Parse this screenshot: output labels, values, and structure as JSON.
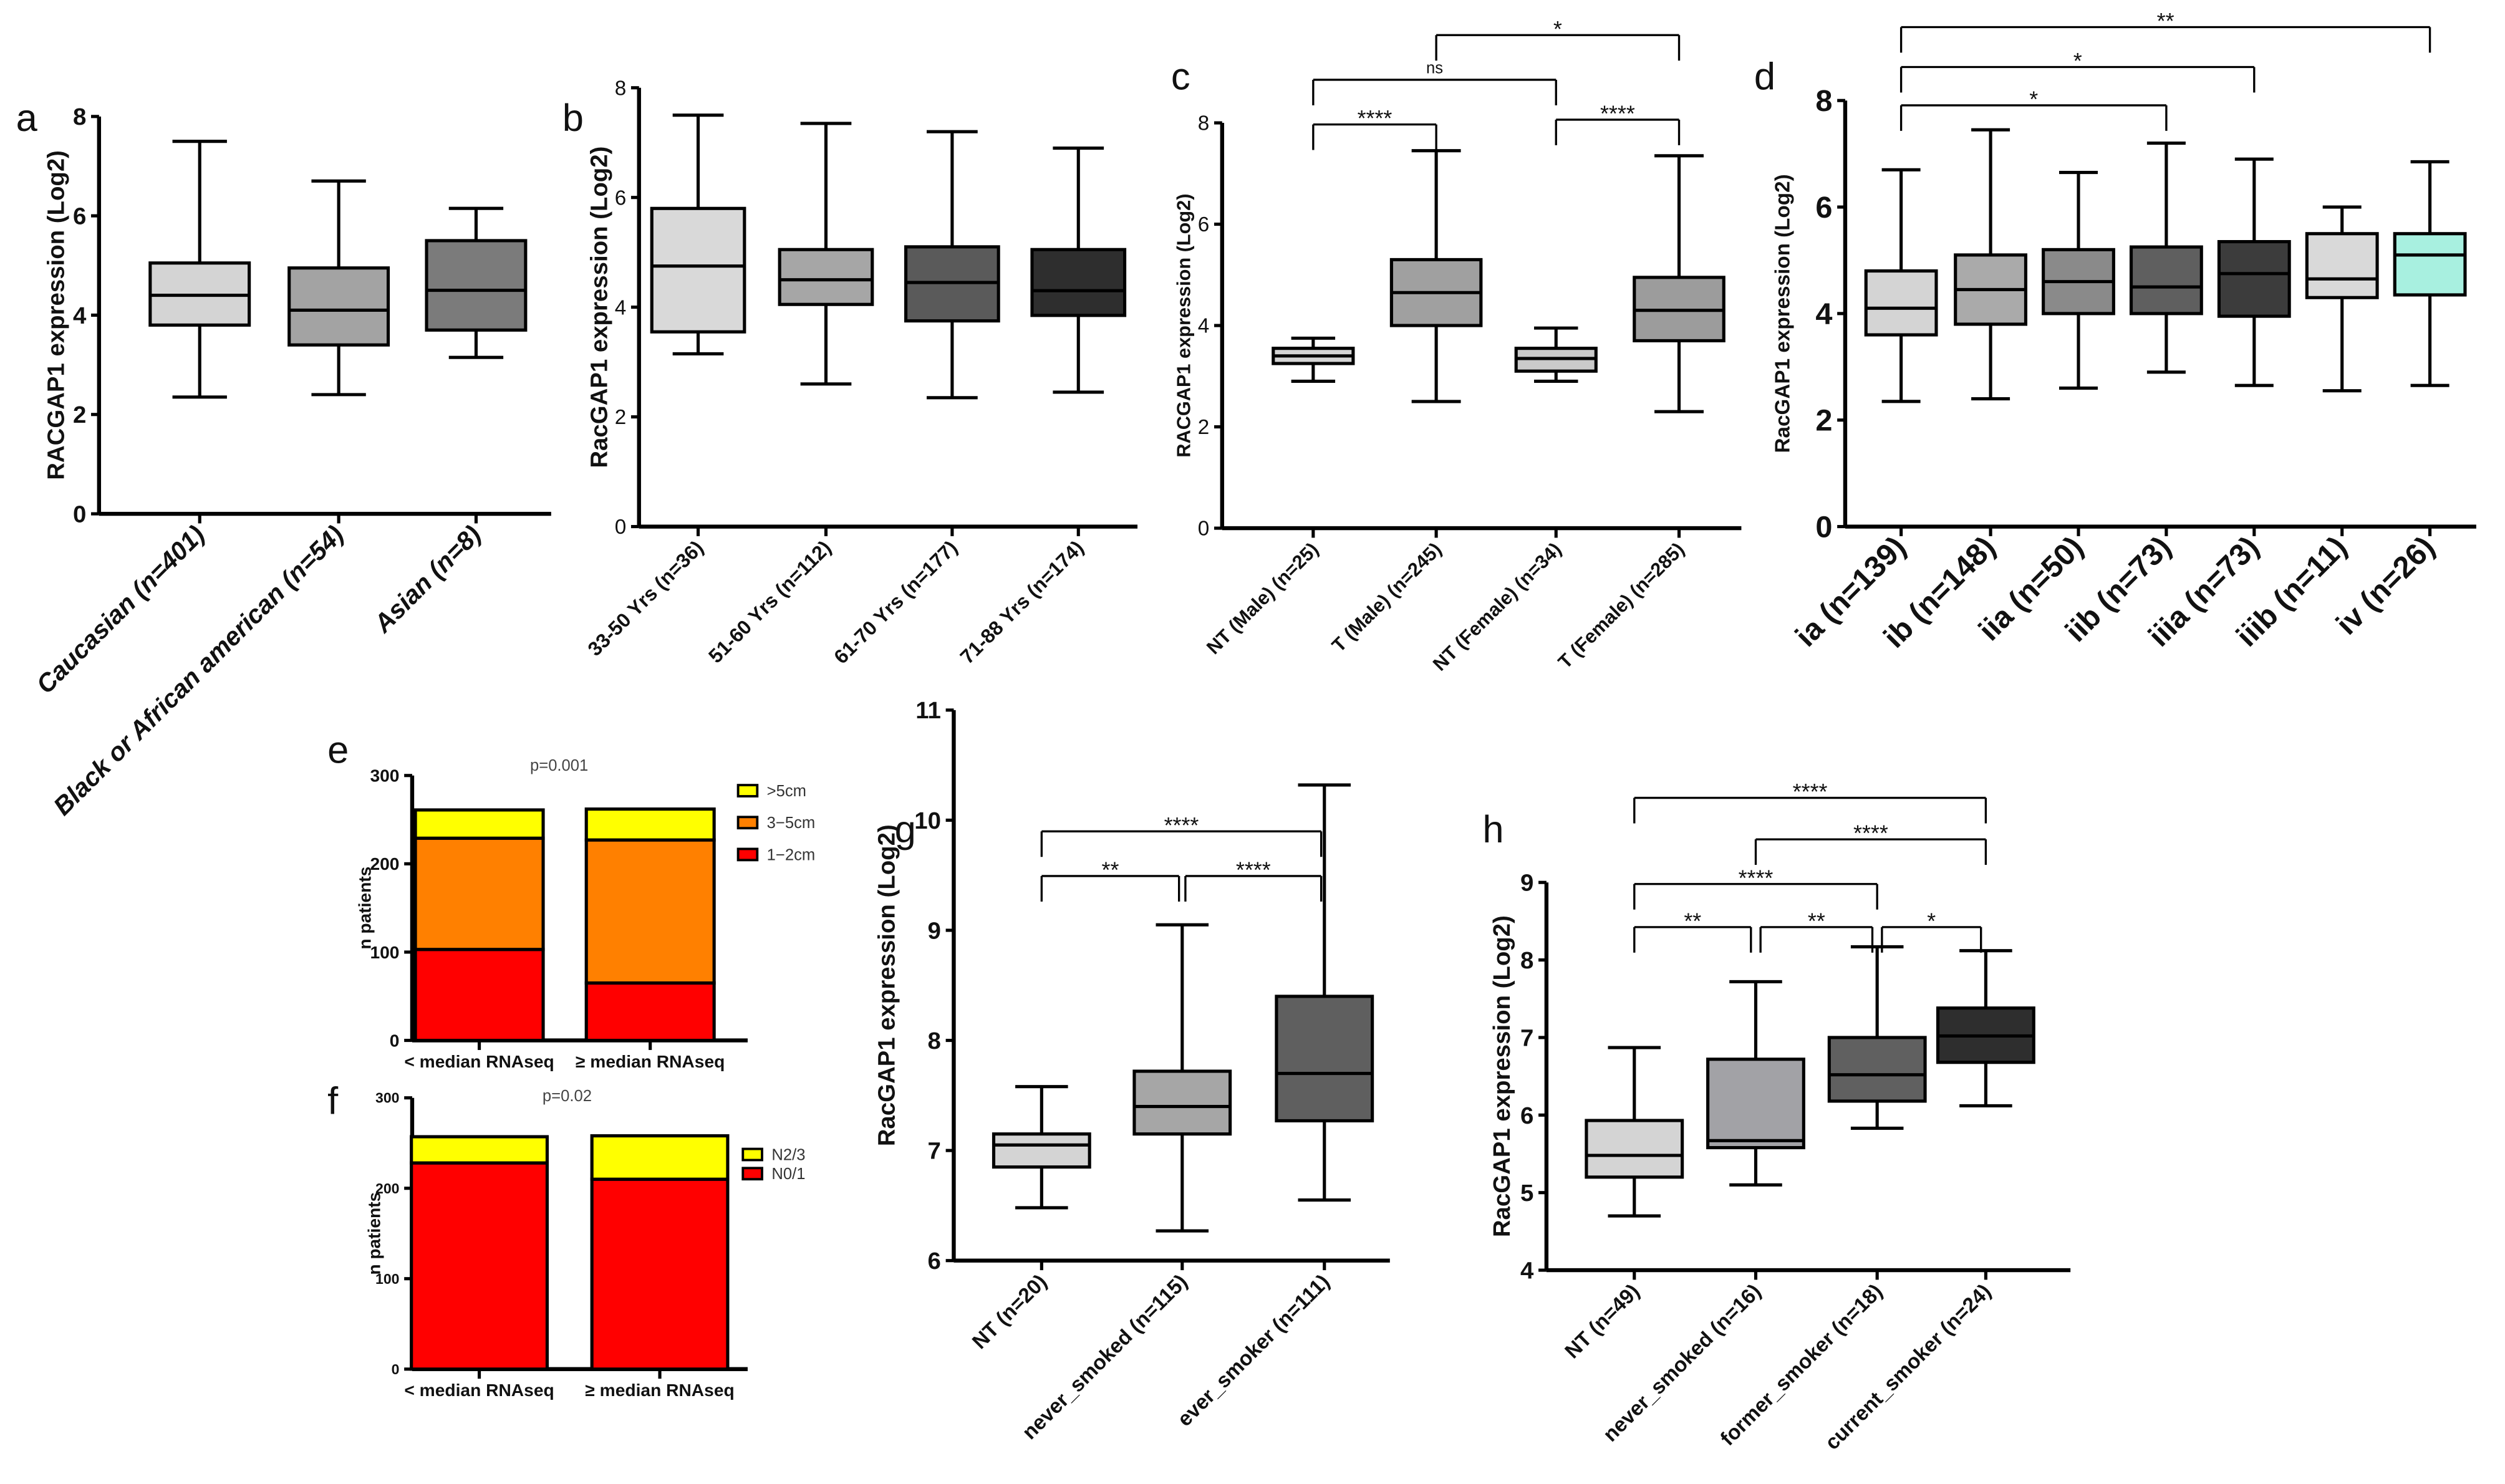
{
  "chart_data": [
    {
      "panel_label": "a",
      "type": "box",
      "ylabel": "RACGAP1 expression (Log2)",
      "ylim": [
        0,
        8
      ],
      "yticks": [
        0,
        2,
        4,
        6,
        8
      ],
      "categories": [
        "Caucasian (n=401)",
        "Black or African american (n=54)",
        "Asian (n=8)"
      ],
      "boxes": [
        {
          "min": 2.35,
          "q1": 3.8,
          "median": 4.4,
          "q3": 5.05,
          "max": 7.5
        },
        {
          "min": 2.4,
          "q1": 3.4,
          "median": 4.1,
          "q3": 4.95,
          "max": 6.7
        },
        {
          "min": 3.15,
          "q1": 3.7,
          "median": 4.5,
          "q3": 5.5,
          "max": 6.15
        }
      ],
      "colors": [
        "#d4d4d4",
        "#a3a3a3",
        "#7b7b7b"
      ],
      "significance": []
    },
    {
      "panel_label": "b",
      "type": "box",
      "ylabel": "RacGAP1 expression (Log2)",
      "ylim": [
        0,
        8
      ],
      "yticks": [
        0,
        2,
        4,
        6,
        8
      ],
      "categories": [
        "33-50 Yrs (n=36)",
        "51-60 Yrs (n=112)",
        "61-70 Yrs (n=177)",
        "71-88 Yrs (n=174)"
      ],
      "boxes": [
        {
          "min": 3.15,
          "q1": 3.55,
          "median": 4.75,
          "q3": 5.8,
          "max": 7.5
        },
        {
          "min": 2.6,
          "q1": 4.05,
          "median": 4.5,
          "q3": 5.05,
          "max": 7.35
        },
        {
          "min": 2.35,
          "q1": 3.75,
          "median": 4.45,
          "q3": 5.1,
          "max": 7.2
        },
        {
          "min": 2.45,
          "q1": 3.85,
          "median": 4.3,
          "q3": 5.05,
          "max": 6.9
        }
      ],
      "colors": [
        "#d9d9d9",
        "#a6a6a6",
        "#5a5a5a",
        "#2e2e2e"
      ],
      "significance": []
    },
    {
      "panel_label": "c",
      "type": "box",
      "ylabel": "RACGAP1 expression (Log2)",
      "ylim": [
        0,
        8
      ],
      "yticks": [
        0,
        2,
        4,
        6,
        8
      ],
      "categories": [
        "NT (Male) (n=25)",
        "T (Male) (n=245)",
        "NT (Female) (n=34)",
        "T (Female) (n=285)"
      ],
      "boxes": [
        {
          "min": 2.9,
          "q1": 3.25,
          "median": 3.4,
          "q3": 3.55,
          "max": 3.75
        },
        {
          "min": 2.5,
          "q1": 4.0,
          "median": 4.65,
          "q3": 5.3,
          "max": 7.45
        },
        {
          "min": 2.9,
          "q1": 3.1,
          "median": 3.35,
          "q3": 3.55,
          "max": 3.95
        },
        {
          "min": 2.3,
          "q1": 3.7,
          "median": 4.3,
          "q3": 4.95,
          "max": 7.35
        }
      ],
      "colors": [
        "#d4d4d4",
        "#a0a0a0",
        "#cacaca",
        "#9c9c9c"
      ],
      "significance": [
        {
          "from": 0,
          "to": 1,
          "label": "****"
        },
        {
          "from": 2,
          "to": 3,
          "label": "****"
        },
        {
          "from": 0,
          "to": 2,
          "label": "ns"
        },
        {
          "from": 1,
          "to": 3,
          "label": "*"
        }
      ]
    },
    {
      "panel_label": "d",
      "type": "box",
      "ylabel": "RacGAP1 expression (Log2)",
      "ylim": [
        0,
        8
      ],
      "yticks": [
        0,
        2,
        4,
        6,
        8
      ],
      "categories": [
        "ia (n=139)",
        "ib (n=148)",
        "iia (n=50)",
        "iib (n=73)",
        "iiia (n=73)",
        "iiib (n=11)",
        "iv (n=26)"
      ],
      "boxes": [
        {
          "min": 2.35,
          "q1": 3.6,
          "median": 4.1,
          "q3": 4.8,
          "max": 6.7
        },
        {
          "min": 2.4,
          "q1": 3.8,
          "median": 4.45,
          "q3": 5.1,
          "max": 7.45
        },
        {
          "min": 2.6,
          "q1": 4.0,
          "median": 4.6,
          "q3": 5.2,
          "max": 6.65
        },
        {
          "min": 2.9,
          "q1": 4.0,
          "median": 4.5,
          "q3": 5.25,
          "max": 7.2
        },
        {
          "min": 2.65,
          "q1": 3.95,
          "median": 4.75,
          "q3": 5.35,
          "max": 6.9
        },
        {
          "min": 2.55,
          "q1": 4.3,
          "median": 4.65,
          "q3": 5.5,
          "max": 6.0
        },
        {
          "min": 2.65,
          "q1": 4.35,
          "median": 5.1,
          "q3": 5.5,
          "max": 6.85
        }
      ],
      "colors": [
        "#d4d4d4",
        "#aaaaaa",
        "#8a8a8a",
        "#5f5f5f",
        "#3c3c3c",
        "#d9d9d9",
        "#a8f0e0"
      ],
      "significance": [
        {
          "from": 0,
          "to": 3,
          "label": "*"
        },
        {
          "from": 0,
          "to": 4,
          "label": "*"
        },
        {
          "from": 0,
          "to": 6,
          "label": "**"
        }
      ]
    },
    {
      "panel_label": "e",
      "type": "stacked_bar",
      "title": "p=0.001",
      "ylabel": "n patients",
      "ylim": [
        0,
        300
      ],
      "yticks": [
        0,
        100,
        200,
        300
      ],
      "categories": [
        "< median RNAseq",
        "≥ median RNAseq"
      ],
      "series": [
        {
          "name": "1−2cm",
          "color": "#ff0000",
          "values": [
            103,
            65
          ]
        },
        {
          "name": "3−5cm",
          "color": "#ff8000",
          "values": [
            126,
            162
          ]
        },
        {
          "name": ">5cm",
          "color": "#ffff00",
          "values": [
            32,
            35
          ]
        }
      ]
    },
    {
      "panel_label": "f",
      "type": "stacked_bar",
      "title": "p=0.02",
      "ylabel": "n patients",
      "ylim": [
        0,
        300
      ],
      "yticks": [
        0,
        100,
        200,
        300
      ],
      "categories": [
        "< median RNAseq",
        "≥ median RNAseq"
      ],
      "series": [
        {
          "name": "N0/1",
          "color": "#ff0000",
          "values": [
            228,
            210
          ]
        },
        {
          "name": "N2/3",
          "color": "#ffff00",
          "values": [
            29,
            48
          ]
        }
      ]
    },
    {
      "panel_label": "g",
      "type": "box",
      "ylabel": "RacGAP1 expression (Log2)",
      "ylim": [
        6,
        11
      ],
      "yticks": [
        6,
        7,
        8,
        9,
        10,
        11
      ],
      "categories": [
        "NT (n=20)",
        "never_smoked (n=115)",
        "ever_smoker (n=111)"
      ],
      "boxes": [
        {
          "min": 6.48,
          "q1": 6.85,
          "median": 7.05,
          "q3": 7.15,
          "max": 7.58
        },
        {
          "min": 6.27,
          "q1": 7.15,
          "median": 7.4,
          "q3": 7.72,
          "max": 9.05
        },
        {
          "min": 6.55,
          "q1": 7.27,
          "median": 7.7,
          "q3": 8.4,
          "max": 10.32
        }
      ],
      "colors": [
        "#d4d4d4",
        "#a6a6a6",
        "#5f5f5f"
      ],
      "significance": [
        {
          "from": 0,
          "to": 1,
          "label": "**"
        },
        {
          "from": 1,
          "to": 2,
          "label": "****"
        },
        {
          "from": 0,
          "to": 2,
          "label": "****"
        }
      ]
    },
    {
      "panel_label": "h",
      "type": "box",
      "ylabel": "RacGAP1 expression (Log2)",
      "ylim": [
        4,
        9
      ],
      "yticks": [
        4,
        5,
        6,
        7,
        8,
        9
      ],
      "categories": [
        "NT (n=49)",
        "never_smoked (n=16)",
        "former_smoker (n=18)",
        "current_smoker (n=24)"
      ],
      "boxes": [
        {
          "min": 4.7,
          "q1": 5.2,
          "median": 5.48,
          "q3": 5.93,
          "max": 6.87
        },
        {
          "min": 5.1,
          "q1": 5.58,
          "median": 5.67,
          "q3": 6.72,
          "max": 7.72
        },
        {
          "min": 5.83,
          "q1": 6.18,
          "median": 6.52,
          "q3": 7.0,
          "max": 8.17
        },
        {
          "min": 6.12,
          "q1": 6.68,
          "median": 7.02,
          "q3": 7.38,
          "max": 8.12
        }
      ],
      "colors": [
        "#d4d4d4",
        "#a2a2a6",
        "#606060",
        "#2e2e2e"
      ],
      "significance": [
        {
          "from": 0,
          "to": 1,
          "label": "**"
        },
        {
          "from": 1,
          "to": 2,
          "label": "**"
        },
        {
          "from": 2,
          "to": 3,
          "label": "*"
        },
        {
          "from": 0,
          "to": 2,
          "label": "****"
        },
        {
          "from": 1,
          "to": 3,
          "label": "****"
        },
        {
          "from": 0,
          "to": 3,
          "label": "****"
        }
      ]
    }
  ]
}
